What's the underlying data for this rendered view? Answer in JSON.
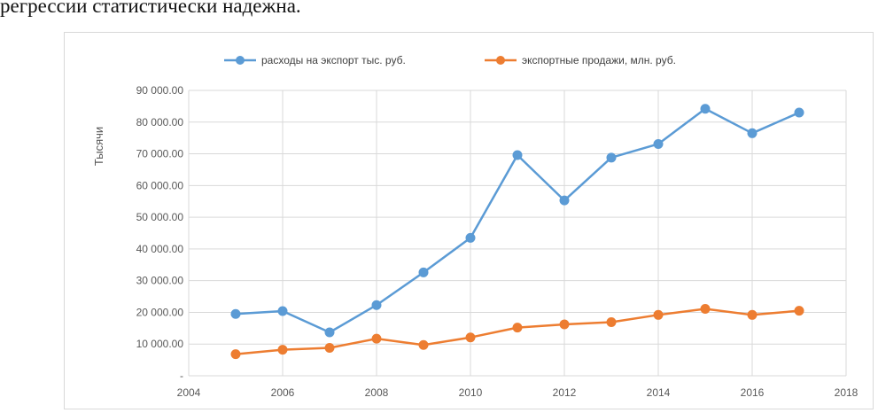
{
  "document": {
    "text_fragment": "регрессии статистически надежна."
  },
  "colors": {
    "series1": "#5b9bd5",
    "series2": "#ed7d31",
    "grid": "#d9d9d9",
    "axis_text": "#595959"
  },
  "chart_data": {
    "type": "line",
    "title": "",
    "xlabel": "",
    "ylabel": "Тысячи",
    "xlim": [
      2004,
      2018
    ],
    "ylim": [
      0,
      90000
    ],
    "x_ticks": [
      2004,
      2006,
      2008,
      2010,
      2012,
      2014,
      2016,
      2018
    ],
    "x_tick_labels": [
      "2004",
      "2006",
      "2008",
      "2010",
      "2012",
      "2014",
      "2016",
      "2018"
    ],
    "y_ticks": [
      0,
      10000,
      20000,
      30000,
      40000,
      50000,
      60000,
      70000,
      80000,
      90000
    ],
    "y_tick_labels": [
      "-",
      "10 000.00",
      "20 000.00",
      "30 000.00",
      "40 000.00",
      "50 000.00",
      "60 000.00",
      "70 000.00",
      "80 000.00",
      "90 000.00"
    ],
    "grid": "vertical and horizontal",
    "legend_position": "top",
    "x": [
      2005,
      2006,
      2007,
      2008,
      2009,
      2010,
      2011,
      2012,
      2013,
      2014,
      2015,
      2016,
      2017
    ],
    "series": [
      {
        "name": "расходы на экспорт тыс. руб.",
        "color": "#5b9bd5",
        "values": [
          19500,
          20400,
          13700,
          22300,
          32600,
          43500,
          69600,
          55300,
          68800,
          73100,
          84200,
          76500,
          83000
        ]
      },
      {
        "name": "экспортные продажи, млн. руб.",
        "color": "#ed7d31",
        "values": [
          6800,
          8200,
          8800,
          11700,
          9700,
          12100,
          15200,
          16200,
          16900,
          19200,
          21100,
          19200,
          20500
        ]
      }
    ]
  }
}
